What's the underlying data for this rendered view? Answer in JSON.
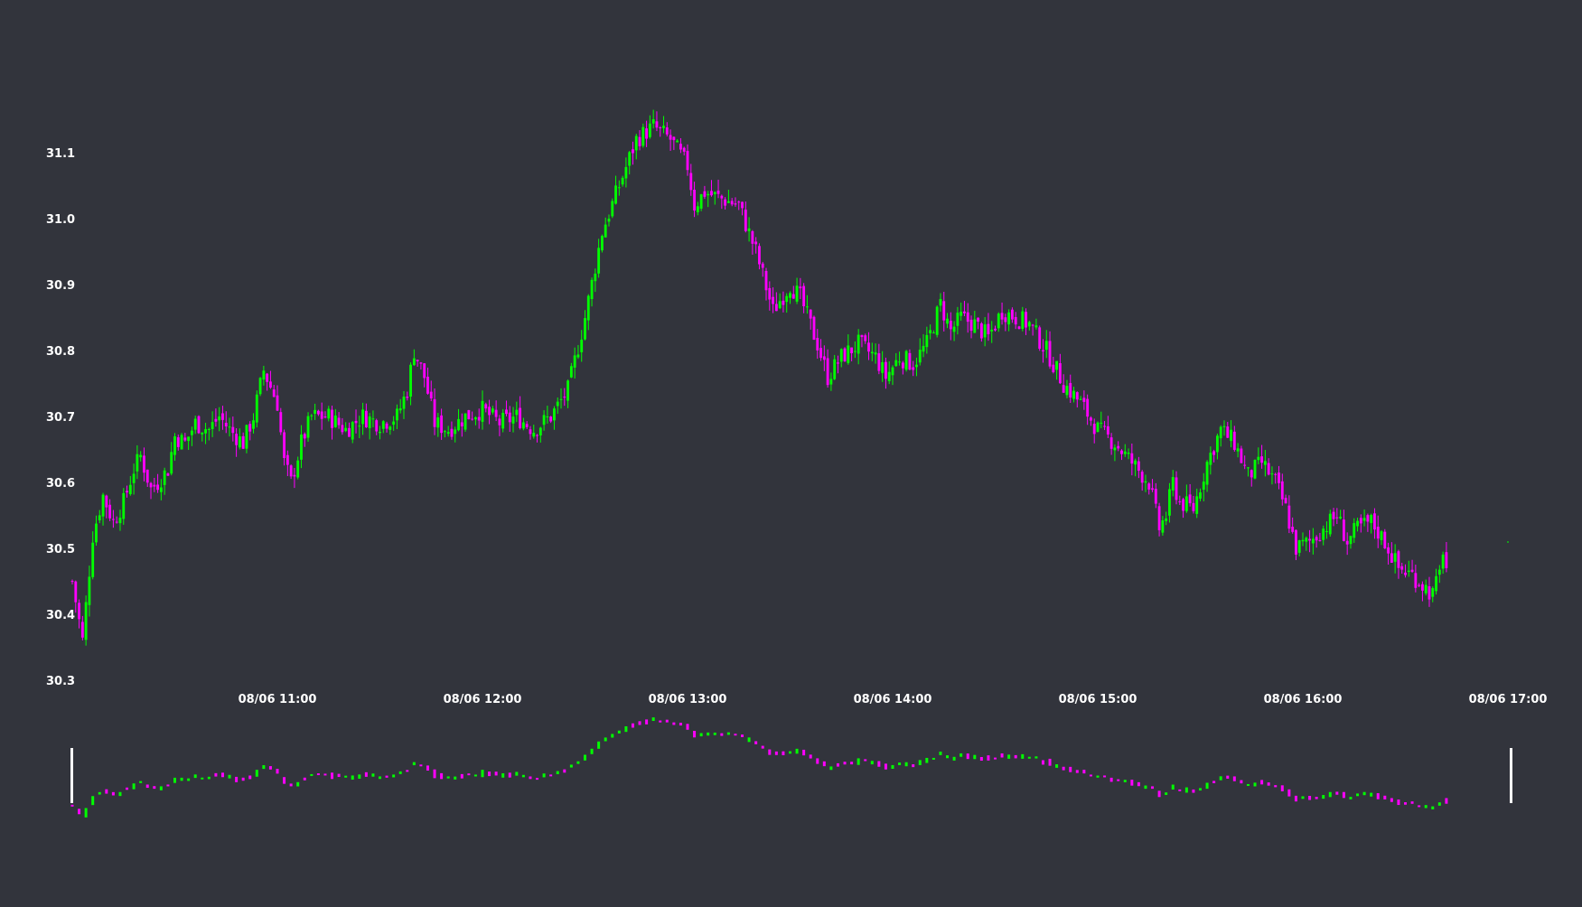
{
  "chart_data": {
    "type": "candlestick",
    "theme": {
      "background": "#32343c",
      "up_color": "#00ff00",
      "down_color": "#ff00ff",
      "text_color": "#ffffff",
      "handle_color": "#ffffff"
    },
    "yaxis": {
      "range": [
        30.3,
        31.1
      ],
      "ticks": [
        31.1,
        31.0,
        30.9,
        30.8,
        30.7,
        30.6,
        30.5,
        30.4,
        30.3
      ]
    },
    "xaxis": {
      "ticks": [
        {
          "minute": 60,
          "label": "08/06 11:00"
        },
        {
          "minute": 120,
          "label": "08/06 12:00"
        },
        {
          "minute": 180,
          "label": "08/06 13:00"
        },
        {
          "minute": 240,
          "label": "08/06 14:00"
        },
        {
          "minute": 300,
          "label": "08/06 15:00"
        },
        {
          "minute": 360,
          "label": "08/06 16:00"
        },
        {
          "minute": 420,
          "label": "08/06 17:00"
        }
      ],
      "range_minutes": [
        0,
        420
      ]
    },
    "close_path": [
      [
        0,
        30.45
      ],
      [
        3,
        30.36
      ],
      [
        6,
        30.52
      ],
      [
        9,
        30.58
      ],
      [
        12,
        30.54
      ],
      [
        15,
        30.57
      ],
      [
        18,
        30.62
      ],
      [
        20,
        30.64
      ],
      [
        23,
        30.59
      ],
      [
        25,
        30.6
      ],
      [
        28,
        30.62
      ],
      [
        30,
        30.67
      ],
      [
        33,
        30.66
      ],
      [
        36,
        30.69
      ],
      [
        40,
        30.68
      ],
      [
        43,
        30.7
      ],
      [
        46,
        30.68
      ],
      [
        50,
        30.66
      ],
      [
        53,
        30.7
      ],
      [
        56,
        30.77
      ],
      [
        60,
        30.72
      ],
      [
        62,
        30.63
      ],
      [
        64,
        30.6
      ],
      [
        67,
        30.66
      ],
      [
        70,
        30.7
      ],
      [
        75,
        30.7
      ],
      [
        80,
        30.68
      ],
      [
        85,
        30.7
      ],
      [
        90,
        30.69
      ],
      [
        95,
        30.7
      ],
      [
        98,
        30.74
      ],
      [
        100,
        30.8
      ],
      [
        103,
        30.76
      ],
      [
        106,
        30.69
      ],
      [
        110,
        30.68
      ],
      [
        115,
        30.7
      ],
      [
        120,
        30.71
      ],
      [
        125,
        30.69
      ],
      [
        130,
        30.7
      ],
      [
        135,
        30.68
      ],
      [
        140,
        30.7
      ],
      [
        145,
        30.74
      ],
      [
        150,
        30.85
      ],
      [
        155,
        30.98
      ],
      [
        160,
        31.05
      ],
      [
        165,
        31.12
      ],
      [
        170,
        31.14
      ],
      [
        175,
        31.12
      ],
      [
        180,
        31.08
      ],
      [
        182,
        31.02
      ],
      [
        185,
        31.04
      ],
      [
        190,
        31.03
      ],
      [
        195,
        31.02
      ],
      [
        200,
        30.95
      ],
      [
        205,
        30.86
      ],
      [
        210,
        30.9
      ],
      [
        213,
        30.88
      ],
      [
        218,
        30.81
      ],
      [
        221,
        30.76
      ],
      [
        225,
        30.79
      ],
      [
        230,
        30.81
      ],
      [
        235,
        30.79
      ],
      [
        238,
        30.76
      ],
      [
        242,
        30.79
      ],
      [
        246,
        30.78
      ],
      [
        250,
        30.81
      ],
      [
        254,
        30.87
      ],
      [
        257,
        30.83
      ],
      [
        260,
        30.85
      ],
      [
        264,
        30.84
      ],
      [
        268,
        30.82
      ],
      [
        272,
        30.86
      ],
      [
        276,
        30.85
      ],
      [
        280,
        30.84
      ],
      [
        285,
        30.8
      ],
      [
        290,
        30.75
      ],
      [
        295,
        30.72
      ],
      [
        300,
        30.68
      ],
      [
        305,
        30.66
      ],
      [
        310,
        30.63
      ],
      [
        315,
        30.6
      ],
      [
        318,
        30.53
      ],
      [
        320,
        30.55
      ],
      [
        322,
        30.6
      ],
      [
        324,
        30.57
      ],
      [
        328,
        30.56
      ],
      [
        332,
        30.63
      ],
      [
        336,
        30.68
      ],
      [
        340,
        30.66
      ],
      [
        344,
        30.61
      ],
      [
        348,
        30.63
      ],
      [
        352,
        30.6
      ],
      [
        355,
        30.56
      ],
      [
        358,
        30.5
      ],
      [
        362,
        30.51
      ],
      [
        366,
        30.53
      ],
      [
        370,
        30.55
      ],
      [
        373,
        30.51
      ],
      [
        376,
        30.53
      ],
      [
        380,
        30.54
      ],
      [
        384,
        30.51
      ],
      [
        388,
        30.47
      ],
      [
        392,
        30.46
      ],
      [
        396,
        30.44
      ],
      [
        398,
        30.43
      ],
      [
        400,
        30.46
      ],
      [
        401,
        30.5
      ],
      [
        402,
        30.47
      ]
    ]
  }
}
